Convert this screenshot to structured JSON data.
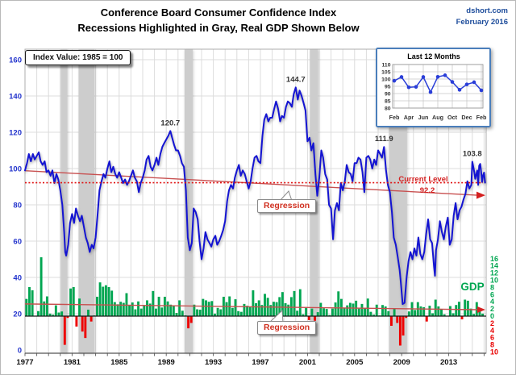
{
  "header": {
    "title_line1": "Conference Board Consumer Confidence Index",
    "title_line2": "Recessions Highlighted in Gray, Real GDP Shown Below",
    "source": "dshort.com",
    "date": "February 2016"
  },
  "annotations": {
    "index_note": "Index Value: 1985 = 100",
    "regression_label": "Regression",
    "current_level_label": "Current Level",
    "current_level_value": "92.2",
    "gdp_label": "GDP"
  },
  "colors": {
    "line_blue": "#1414D2",
    "axis_blue": "#2233CC",
    "green": "#00A651",
    "red": "#EE0000",
    "regression_red": "#C85050",
    "dotted_red": "#E01010",
    "arrow_red": "#D42020",
    "recession_gray": "#CDCDCD",
    "grid": "#DCDCDC",
    "inset_border": "#4A7EBB",
    "header_blue": "#1F4E9C"
  },
  "chart_data": {
    "type": "line+bar",
    "title": "Conference Board Consumer Confidence Index",
    "x_range": [
      1977,
      2016.3
    ],
    "axes": {
      "left_ticks": [
        0,
        20,
        40,
        60,
        80,
        100,
        120,
        140,
        160
      ],
      "year_ticks": [
        1977,
        1981,
        1985,
        1989,
        1993,
        1997,
        2001,
        2005,
        2009,
        2013
      ],
      "right_green_ticks": [
        16,
        14,
        12,
        10,
        8,
        6,
        4,
        2,
        0
      ],
      "right_red_ticks": [
        2,
        4,
        6,
        8,
        10
      ]
    },
    "recessions": [
      [
        1980.05,
        1980.6
      ],
      [
        1981.55,
        1982.9
      ],
      [
        1990.55,
        1991.25
      ],
      [
        2001.2,
        2001.9
      ],
      [
        2007.92,
        2009.45
      ]
    ],
    "peaks": [
      {
        "label": "120.7",
        "t": 1989.35,
        "v": 120.7
      },
      {
        "label": "144.7",
        "t": 2000.0,
        "v": 144.7
      },
      {
        "label": "111.9",
        "t": 2007.5,
        "v": 111.9
      },
      {
        "label": "103.8",
        "t": 2015.0,
        "v": 103.8
      }
    ],
    "current_level": 92.2,
    "regression_confidence": {
      "t": [
        1977,
        2016.1
      ],
      "v": [
        98.8,
        85.3
      ]
    },
    "regression_gdp": {
      "t": [
        1977,
        2016.1
      ],
      "v": [
        3.4,
        1.8
      ]
    },
    "confidence_series": {
      "name": "Consumer Confidence Index",
      "points": [
        [
          1977.0,
          99
        ],
        [
          1977.17,
          103
        ],
        [
          1977.33,
          108
        ],
        [
          1977.5,
          104
        ],
        [
          1977.67,
          108
        ],
        [
          1977.83,
          105
        ],
        [
          1978.0,
          107
        ],
        [
          1978.17,
          109
        ],
        [
          1978.33,
          104
        ],
        [
          1978.5,
          102
        ],
        [
          1978.67,
          104
        ],
        [
          1978.83,
          98
        ],
        [
          1979.0,
          99
        ],
        [
          1979.17,
          96
        ],
        [
          1979.33,
          99
        ],
        [
          1979.5,
          92
        ],
        [
          1979.67,
          97
        ],
        [
          1979.83,
          94
        ],
        [
          1980.0,
          88
        ],
        [
          1980.17,
          80
        ],
        [
          1980.33,
          65
        ],
        [
          1980.42,
          54
        ],
        [
          1980.5,
          52
        ],
        [
          1980.67,
          58
        ],
        [
          1980.83,
          70
        ],
        [
          1981.0,
          75
        ],
        [
          1981.17,
          70
        ],
        [
          1981.33,
          78
        ],
        [
          1981.5,
          74
        ],
        [
          1981.67,
          71
        ],
        [
          1981.83,
          74
        ],
        [
          1982.0,
          68
        ],
        [
          1982.17,
          62
        ],
        [
          1982.33,
          59
        ],
        [
          1982.5,
          54
        ],
        [
          1982.67,
          58
        ],
        [
          1982.83,
          56
        ],
        [
          1983.0,
          62
        ],
        [
          1983.17,
          75
        ],
        [
          1983.33,
          88
        ],
        [
          1983.5,
          93
        ],
        [
          1983.67,
          97
        ],
        [
          1983.83,
          95
        ],
        [
          1984.0,
          100
        ],
        [
          1984.17,
          104
        ],
        [
          1984.33,
          98
        ],
        [
          1984.5,
          101
        ],
        [
          1984.67,
          97
        ],
        [
          1984.83,
          95
        ],
        [
          1985.0,
          98
        ],
        [
          1985.17,
          95
        ],
        [
          1985.33,
          92
        ],
        [
          1985.5,
          94
        ],
        [
          1985.67,
          91
        ],
        [
          1985.83,
          93
        ],
        [
          1986.0,
          96
        ],
        [
          1986.17,
          99
        ],
        [
          1986.33,
          95
        ],
        [
          1986.5,
          93
        ],
        [
          1986.67,
          87
        ],
        [
          1986.83,
          92
        ],
        [
          1987.0,
          95
        ],
        [
          1987.17,
          99
        ],
        [
          1987.33,
          105
        ],
        [
          1987.5,
          107
        ],
        [
          1987.67,
          101
        ],
        [
          1987.83,
          99
        ],
        [
          1988.0,
          102
        ],
        [
          1988.17,
          106
        ],
        [
          1988.33,
          102
        ],
        [
          1988.5,
          108
        ],
        [
          1988.67,
          112
        ],
        [
          1988.83,
          114
        ],
        [
          1989.0,
          116
        ],
        [
          1989.17,
          118
        ],
        [
          1989.35,
          120.7
        ],
        [
          1989.5,
          117
        ],
        [
          1989.67,
          113
        ],
        [
          1989.83,
          110
        ],
        [
          1990.0,
          110
        ],
        [
          1990.17,
          107
        ],
        [
          1990.33,
          103
        ],
        [
          1990.5,
          101
        ],
        [
          1990.67,
          88
        ],
        [
          1990.83,
          62
        ],
        [
          1991.0,
          55
        ],
        [
          1991.17,
          59
        ],
        [
          1991.33,
          78
        ],
        [
          1991.5,
          76
        ],
        [
          1991.67,
          72
        ],
        [
          1991.83,
          60
        ],
        [
          1992.0,
          50
        ],
        [
          1992.17,
          56
        ],
        [
          1992.33,
          65
        ],
        [
          1992.5,
          61
        ],
        [
          1992.67,
          59
        ],
        [
          1992.83,
          57
        ],
        [
          1993.0,
          61
        ],
        [
          1993.17,
          63
        ],
        [
          1993.33,
          58
        ],
        [
          1993.5,
          60
        ],
        [
          1993.67,
          63
        ],
        [
          1993.83,
          66
        ],
        [
          1994.0,
          71
        ],
        [
          1994.17,
          82
        ],
        [
          1994.33,
          88
        ],
        [
          1994.5,
          91
        ],
        [
          1994.67,
          89
        ],
        [
          1994.83,
          95
        ],
        [
          1995.0,
          99
        ],
        [
          1995.17,
          102
        ],
        [
          1995.33,
          96
        ],
        [
          1995.5,
          99
        ],
        [
          1995.67,
          97
        ],
        [
          1995.83,
          93
        ],
        [
          1996.0,
          89
        ],
        [
          1996.17,
          93
        ],
        [
          1996.33,
          100
        ],
        [
          1996.5,
          106
        ],
        [
          1996.67,
          107
        ],
        [
          1996.83,
          104
        ],
        [
          1997.0,
          103
        ],
        [
          1997.17,
          118
        ],
        [
          1997.33,
          127
        ],
        [
          1997.5,
          130
        ],
        [
          1997.67,
          126
        ],
        [
          1997.83,
          128
        ],
        [
          1998.0,
          128
        ],
        [
          1998.17,
          133
        ],
        [
          1998.33,
          137
        ],
        [
          1998.5,
          133
        ],
        [
          1998.67,
          126
        ],
        [
          1998.83,
          129
        ],
        [
          1999.0,
          128
        ],
        [
          1999.17,
          134
        ],
        [
          1999.33,
          137
        ],
        [
          1999.5,
          136
        ],
        [
          1999.67,
          134
        ],
        [
          1999.83,
          141
        ],
        [
          2000.0,
          144.7
        ],
        [
          2000.17,
          138
        ],
        [
          2000.33,
          143
        ],
        [
          2000.5,
          140
        ],
        [
          2000.67,
          136
        ],
        [
          2000.83,
          132
        ],
        [
          2001.0,
          115
        ],
        [
          2001.17,
          117
        ],
        [
          2001.33,
          110
        ],
        [
          2001.5,
          114
        ],
        [
          2001.67,
          97
        ],
        [
          2001.83,
          85
        ],
        [
          2002.0,
          95
        ],
        [
          2002.17,
          110
        ],
        [
          2002.33,
          106
        ],
        [
          2002.5,
          97
        ],
        [
          2002.67,
          94
        ],
        [
          2002.83,
          80
        ],
        [
          2003.0,
          78
        ],
        [
          2003.17,
          61
        ],
        [
          2003.33,
          77
        ],
        [
          2003.5,
          81
        ],
        [
          2003.67,
          77
        ],
        [
          2003.83,
          92
        ],
        [
          2004.0,
          88
        ],
        [
          2004.17,
          93
        ],
        [
          2004.33,
          102
        ],
        [
          2004.5,
          98
        ],
        [
          2004.67,
          97
        ],
        [
          2004.83,
          93
        ],
        [
          2005.0,
          103
        ],
        [
          2005.17,
          103
        ],
        [
          2005.33,
          106
        ],
        [
          2005.5,
          105
        ],
        [
          2005.67,
          98
        ],
        [
          2005.83,
          87
        ],
        [
          2006.0,
          106
        ],
        [
          2006.17,
          107
        ],
        [
          2006.33,
          105
        ],
        [
          2006.5,
          100
        ],
        [
          2006.67,
          105
        ],
        [
          2006.83,
          102
        ],
        [
          2007.0,
          110
        ],
        [
          2007.17,
          108
        ],
        [
          2007.33,
          106
        ],
        [
          2007.5,
          111.9
        ],
        [
          2007.67,
          99
        ],
        [
          2007.83,
          91
        ],
        [
          2008.0,
          87
        ],
        [
          2008.17,
          76
        ],
        [
          2008.33,
          62
        ],
        [
          2008.5,
          58
        ],
        [
          2008.67,
          51
        ],
        [
          2008.83,
          44
        ],
        [
          2008.92,
          38
        ],
        [
          2009.08,
          25.3
        ],
        [
          2009.25,
          26
        ],
        [
          2009.42,
          40
        ],
        [
          2009.58,
          49
        ],
        [
          2009.75,
          54
        ],
        [
          2009.92,
          50
        ],
        [
          2010.08,
          56
        ],
        [
          2010.25,
          52
        ],
        [
          2010.42,
          62
        ],
        [
          2010.58,
          53
        ],
        [
          2010.75,
          50
        ],
        [
          2010.92,
          54
        ],
        [
          2011.08,
          64
        ],
        [
          2011.25,
          72
        ],
        [
          2011.42,
          61
        ],
        [
          2011.58,
          59
        ],
        [
          2011.75,
          46
        ],
        [
          2011.83,
          40.9
        ],
        [
          2011.92,
          55
        ],
        [
          2012.08,
          61
        ],
        [
          2012.25,
          71
        ],
        [
          2012.42,
          65
        ],
        [
          2012.58,
          61
        ],
        [
          2012.75,
          68
        ],
        [
          2012.92,
          73
        ],
        [
          2013.08,
          58
        ],
        [
          2013.25,
          61
        ],
        [
          2013.42,
          74
        ],
        [
          2013.58,
          81
        ],
        [
          2013.75,
          72
        ],
        [
          2013.92,
          77
        ],
        [
          2014.08,
          79
        ],
        [
          2014.25,
          83
        ],
        [
          2014.42,
          86
        ],
        [
          2014.58,
          93
        ],
        [
          2014.75,
          89
        ],
        [
          2014.92,
          91
        ],
        [
          2015.0,
          103.8
        ],
        [
          2015.17,
          98
        ],
        [
          2015.25,
          94.3
        ],
        [
          2015.42,
          99
        ],
        [
          2015.5,
          91
        ],
        [
          2015.58,
          101.5
        ],
        [
          2015.67,
          102.6
        ],
        [
          2015.75,
          98
        ],
        [
          2015.83,
          92.6
        ],
        [
          2015.92,
          96.3
        ],
        [
          2016.0,
          97.8
        ],
        [
          2016.08,
          92.2
        ]
      ]
    },
    "gdp_bars": {
      "name": "Real GDP quarterly growth (%)",
      "start_year": 1977,
      "per_year": 4,
      "values": [
        4.8,
        8.1,
        7.2,
        0.0,
        1.4,
        16.4,
        4.1,
        5.5,
        0.7,
        0.4,
        3.0,
        1.0,
        1.3,
        -8.0,
        -0.5,
        7.7,
        8.1,
        -2.9,
        4.9,
        -4.3,
        -6.1,
        1.8,
        -1.5,
        0.2,
        5.4,
        9.4,
        8.2,
        8.6,
        8.1,
        7.1,
        3.9,
        3.3,
        4.0,
        3.7,
        6.4,
        3.1,
        3.8,
        1.9,
        4.1,
        2.1,
        3.0,
        4.4,
        3.5,
        7.0,
        2.1,
        5.4,
        2.4,
        5.4,
        4.1,
        3.2,
        3.0,
        0.9,
        4.4,
        1.5,
        0.2,
        -3.4,
        -1.9,
        3.2,
        1.9,
        1.8,
        4.8,
        4.4,
        4.0,
        4.2,
        0.7,
        2.3,
        1.9,
        5.4,
        3.9,
        5.5,
        2.3,
        4.7,
        1.4,
        1.2,
        3.4,
        2.9,
        2.7,
        7.2,
        3.6,
        4.4,
        3.1,
        6.2,
        5.1,
        3.1,
        4.0,
        3.9,
        5.3,
        6.7,
        3.6,
        3.2,
        5.3,
        7.0,
        1.5,
        7.5,
        0.5,
        2.5,
        -1.1,
        2.1,
        -1.3,
        1.1,
        3.7,
        2.2,
        2.0,
        0.3,
        2.1,
        3.8,
        6.9,
        4.8,
        2.3,
        3.0,
        3.7,
        3.5,
        4.3,
        2.1,
        3.4,
        2.3,
        4.9,
        1.2,
        0.4,
        3.2,
        0.2,
        3.1,
        2.7,
        1.4,
        -2.7,
        2.0,
        -1.9,
        -8.2,
        -5.4,
        -0.5,
        1.3,
        3.9,
        1.7,
        3.9,
        2.7,
        2.5,
        -1.5,
        2.9,
        0.8,
        4.6,
        2.7,
        1.9,
        0.5,
        0.1,
        2.8,
        0.8,
        3.1,
        4.0,
        -0.9,
        4.6,
        4.3,
        2.1,
        0.6,
        3.9,
        2.0,
        0.7
      ]
    },
    "inset": {
      "title": "Last 12 Months",
      "y_ticks": [
        110,
        105,
        100,
        95,
        90,
        85,
        80
      ],
      "x_labels": [
        "Feb",
        "Apr",
        "Jun",
        "Aug",
        "Oct",
        "Dec",
        "Feb"
      ],
      "values": [
        98.8,
        101.4,
        94.3,
        94.6,
        101.4,
        91.0,
        101.5,
        102.6,
        98.0,
        92.6,
        96.3,
        97.8,
        92.2
      ]
    }
  }
}
